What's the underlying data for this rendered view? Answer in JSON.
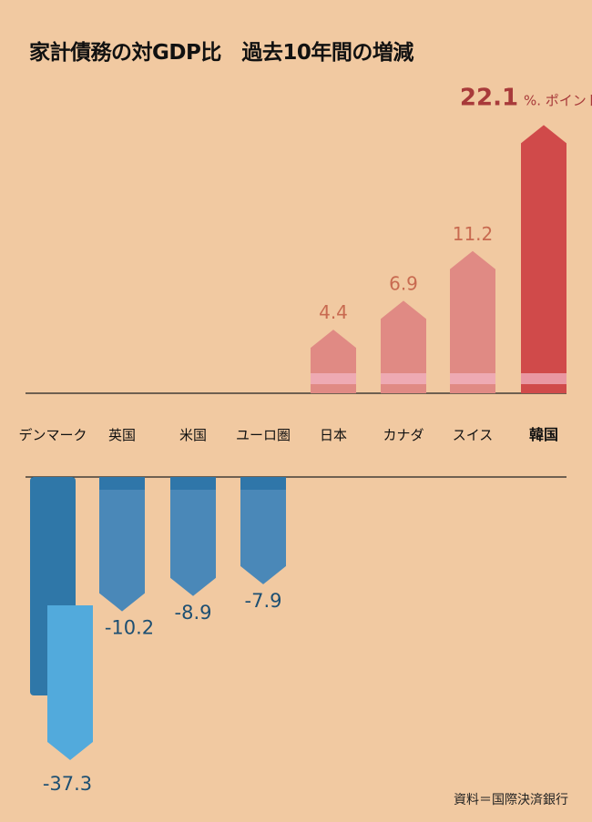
{
  "title": "家計債務の対GDP比　過去10年間の増減",
  "source": "資料＝国際決済銀行",
  "chart_data": {
    "type": "bar",
    "title": "家計債務の対GDP比　過去10年間の増減",
    "unit_label": "%. ポイント",
    "categories": [
      "デンマーク",
      "英国",
      "米国",
      "ユーロ圏",
      "日本",
      "カナダ",
      "スイス",
      "韓国"
    ],
    "values": [
      -37.3,
      -10.2,
      -8.9,
      -7.9,
      4.4,
      6.9,
      11.2,
      22.1
    ],
    "value_labels": [
      "-37.3",
      "-10.2",
      "-8.9",
      "-7.9",
      "4.4",
      "6.9",
      "11.2",
      "22.1"
    ],
    "highlight": "韓国",
    "colors": {
      "positive": "#e08a84",
      "highlight": "#d04a4a",
      "negative": "#4a88b8",
      "negative_light": "#52aadc",
      "pos_label": "#c86a50",
      "neg_label": "#1d4f72",
      "highlight_label": "#a83a3a"
    }
  }
}
